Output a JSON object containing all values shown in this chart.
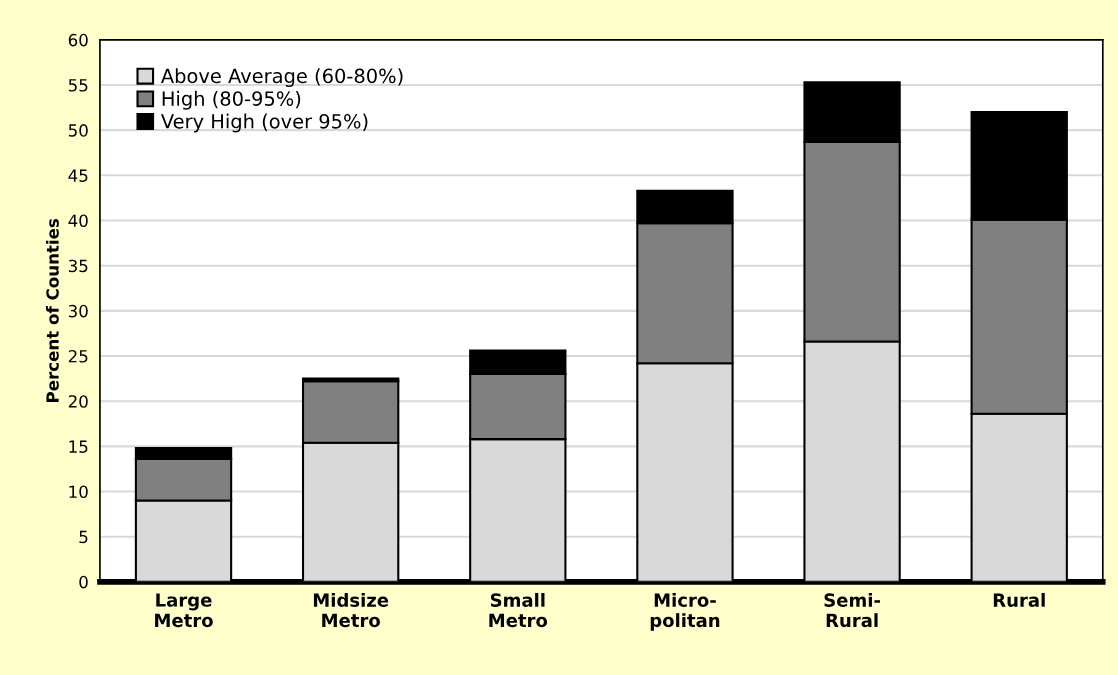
{
  "chart_data": {
    "type": "bar",
    "stacked": true,
    "ylabel": "Percent of Counties",
    "categories": [
      "Large\nMetro",
      "Midsize\nMetro",
      "Small\nMetro",
      "Micro-\npolitan",
      "Semi-\nRural",
      "Rural"
    ],
    "series": [
      {
        "name": "Above Average (60-80%)",
        "color": "#d9d9d9",
        "values": [
          9.0,
          15.4,
          15.8,
          24.2,
          26.6,
          18.6
        ]
      },
      {
        "name": "High (80-95%)",
        "color": "#808080",
        "values": [
          4.6,
          6.8,
          7.2,
          15.5,
          22.1,
          21.5
        ]
      },
      {
        "name": "Very High (over 95%)",
        "color": "#000000",
        "values": [
          1.2,
          0.3,
          2.6,
          3.6,
          6.6,
          11.9
        ]
      }
    ],
    "ylim": [
      0,
      60
    ],
    "yticks": [
      0,
      5,
      10,
      15,
      20,
      25,
      30,
      35,
      40,
      45,
      50,
      55,
      60
    ],
    "grid": "y",
    "legend": "top left"
  }
}
